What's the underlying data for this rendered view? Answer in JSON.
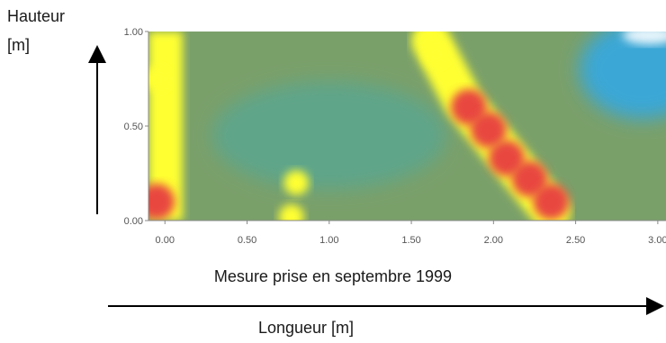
{
  "y_axis": {
    "label_line1": "Hauteur",
    "label_line2": "[m]"
  },
  "x_axis": {
    "label": "Longueur [m]"
  },
  "caption": "Mesure prise en septembre 1999",
  "colors": {
    "background": "#7aa06a",
    "cool": "#3aa7d6",
    "warm_yellow": "#ffff33",
    "hot_red": "#e8473f"
  },
  "chart_data": {
    "type": "heatmap",
    "title": "",
    "xlabel": "Longueur [m]",
    "ylabel": "Hauteur [m]",
    "xlim": [
      -0.1,
      3.05
    ],
    "ylim": [
      0,
      1.0
    ],
    "x_ticks": [
      "0.00",
      "0.50",
      "1.00",
      "1.50",
      "2.00",
      "2.50",
      "3.00"
    ],
    "y_ticks": [
      "0.00",
      "0.50",
      "1.00"
    ],
    "grid": false,
    "colorscale": "blue → green → yellow → red",
    "hotspots": [
      {
        "x": 1.65,
        "y": 0.88,
        "level": "yellow"
      },
      {
        "x": 1.85,
        "y": 0.6,
        "level": "red"
      },
      {
        "x": 1.97,
        "y": 0.48,
        "level": "red"
      },
      {
        "x": 2.08,
        "y": 0.33,
        "level": "red"
      },
      {
        "x": 2.22,
        "y": 0.22,
        "level": "red"
      },
      {
        "x": 2.35,
        "y": 0.1,
        "level": "red"
      },
      {
        "x": -0.05,
        "y": 0.1,
        "level": "red"
      },
      {
        "x": -0.05,
        "y": 0.75,
        "level": "yellow"
      },
      {
        "x": 0.77,
        "y": 0.02,
        "level": "yellow"
      },
      {
        "x": 0.8,
        "y": 0.2,
        "level": "yellow"
      }
    ],
    "cool_region": {
      "x": [
        2.65,
        3.05
      ],
      "y": [
        0.55,
        1.0
      ]
    }
  }
}
